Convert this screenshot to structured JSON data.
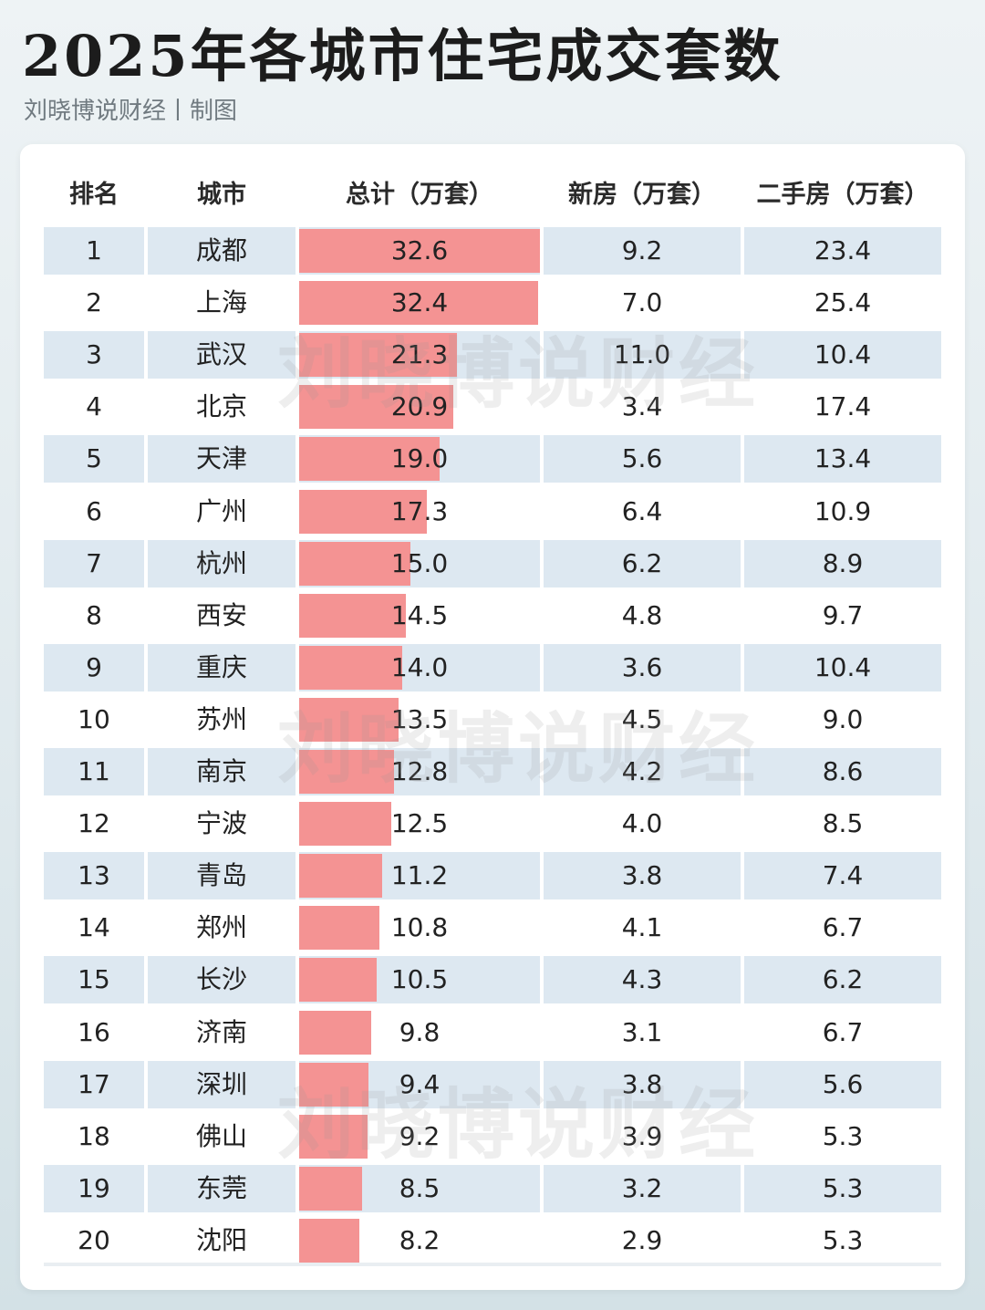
{
  "title": "2025年各城市住宅成交套数",
  "subtitle": "刘晓博说财经丨制图",
  "watermark": "刘晓博说财经",
  "colors": {
    "bar": "#f49393",
    "row_shade": "#dde8f1"
  },
  "chart_data": {
    "type": "table",
    "title": "2025年各城市住宅成交套数",
    "columns": [
      "排名",
      "城市",
      "总计（万套）",
      "新房（万套）",
      "二手房（万套）"
    ],
    "bar_column": "总计（万套）",
    "rows": [
      {
        "rank": "1",
        "city": "成都",
        "total": 32.6,
        "new": "9.2",
        "second": "23.4"
      },
      {
        "rank": "2",
        "city": "上海",
        "total": 32.4,
        "new": "7.0",
        "second": "25.4"
      },
      {
        "rank": "3",
        "city": "武汉",
        "total": 21.3,
        "new": "11.0",
        "second": "10.4"
      },
      {
        "rank": "4",
        "city": "北京",
        "total": 20.9,
        "new": "3.4",
        "second": "17.4"
      },
      {
        "rank": "5",
        "city": "天津",
        "total": 19.0,
        "new": "5.6",
        "second": "13.4"
      },
      {
        "rank": "6",
        "city": "广州",
        "total": 17.3,
        "new": "6.4",
        "second": "10.9"
      },
      {
        "rank": "7",
        "city": "杭州",
        "total": 15.0,
        "new": "6.2",
        "second": "8.9"
      },
      {
        "rank": "8",
        "city": "西安",
        "total": 14.5,
        "new": "4.8",
        "second": "9.7"
      },
      {
        "rank": "9",
        "city": "重庆",
        "total": 14.0,
        "new": "3.6",
        "second": "10.4"
      },
      {
        "rank": "10",
        "city": "苏州",
        "total": 13.5,
        "new": "4.5",
        "second": "9.0"
      },
      {
        "rank": "11",
        "city": "南京",
        "total": 12.8,
        "new": "4.2",
        "second": "8.6"
      },
      {
        "rank": "12",
        "city": "宁波",
        "total": 12.5,
        "new": "4.0",
        "second": "8.5"
      },
      {
        "rank": "13",
        "city": "青岛",
        "total": 11.2,
        "new": "3.8",
        "second": "7.4"
      },
      {
        "rank": "14",
        "city": "郑州",
        "total": 10.8,
        "new": "4.1",
        "second": "6.7"
      },
      {
        "rank": "15",
        "city": "长沙",
        "total": 10.5,
        "new": "4.3",
        "second": "6.2"
      },
      {
        "rank": "16",
        "city": "济南",
        "total": 9.8,
        "new": "3.1",
        "second": "6.7"
      },
      {
        "rank": "17",
        "city": "深圳",
        "total": 9.4,
        "new": "3.8",
        "second": "5.6"
      },
      {
        "rank": "18",
        "city": "佛山",
        "total": 9.2,
        "new": "3.9",
        "second": "5.3"
      },
      {
        "rank": "19",
        "city": "东莞",
        "total": 8.5,
        "new": "3.2",
        "second": "5.3"
      },
      {
        "rank": "20",
        "city": "沈阳",
        "total": 8.2,
        "new": "2.9",
        "second": "5.3"
      }
    ]
  }
}
